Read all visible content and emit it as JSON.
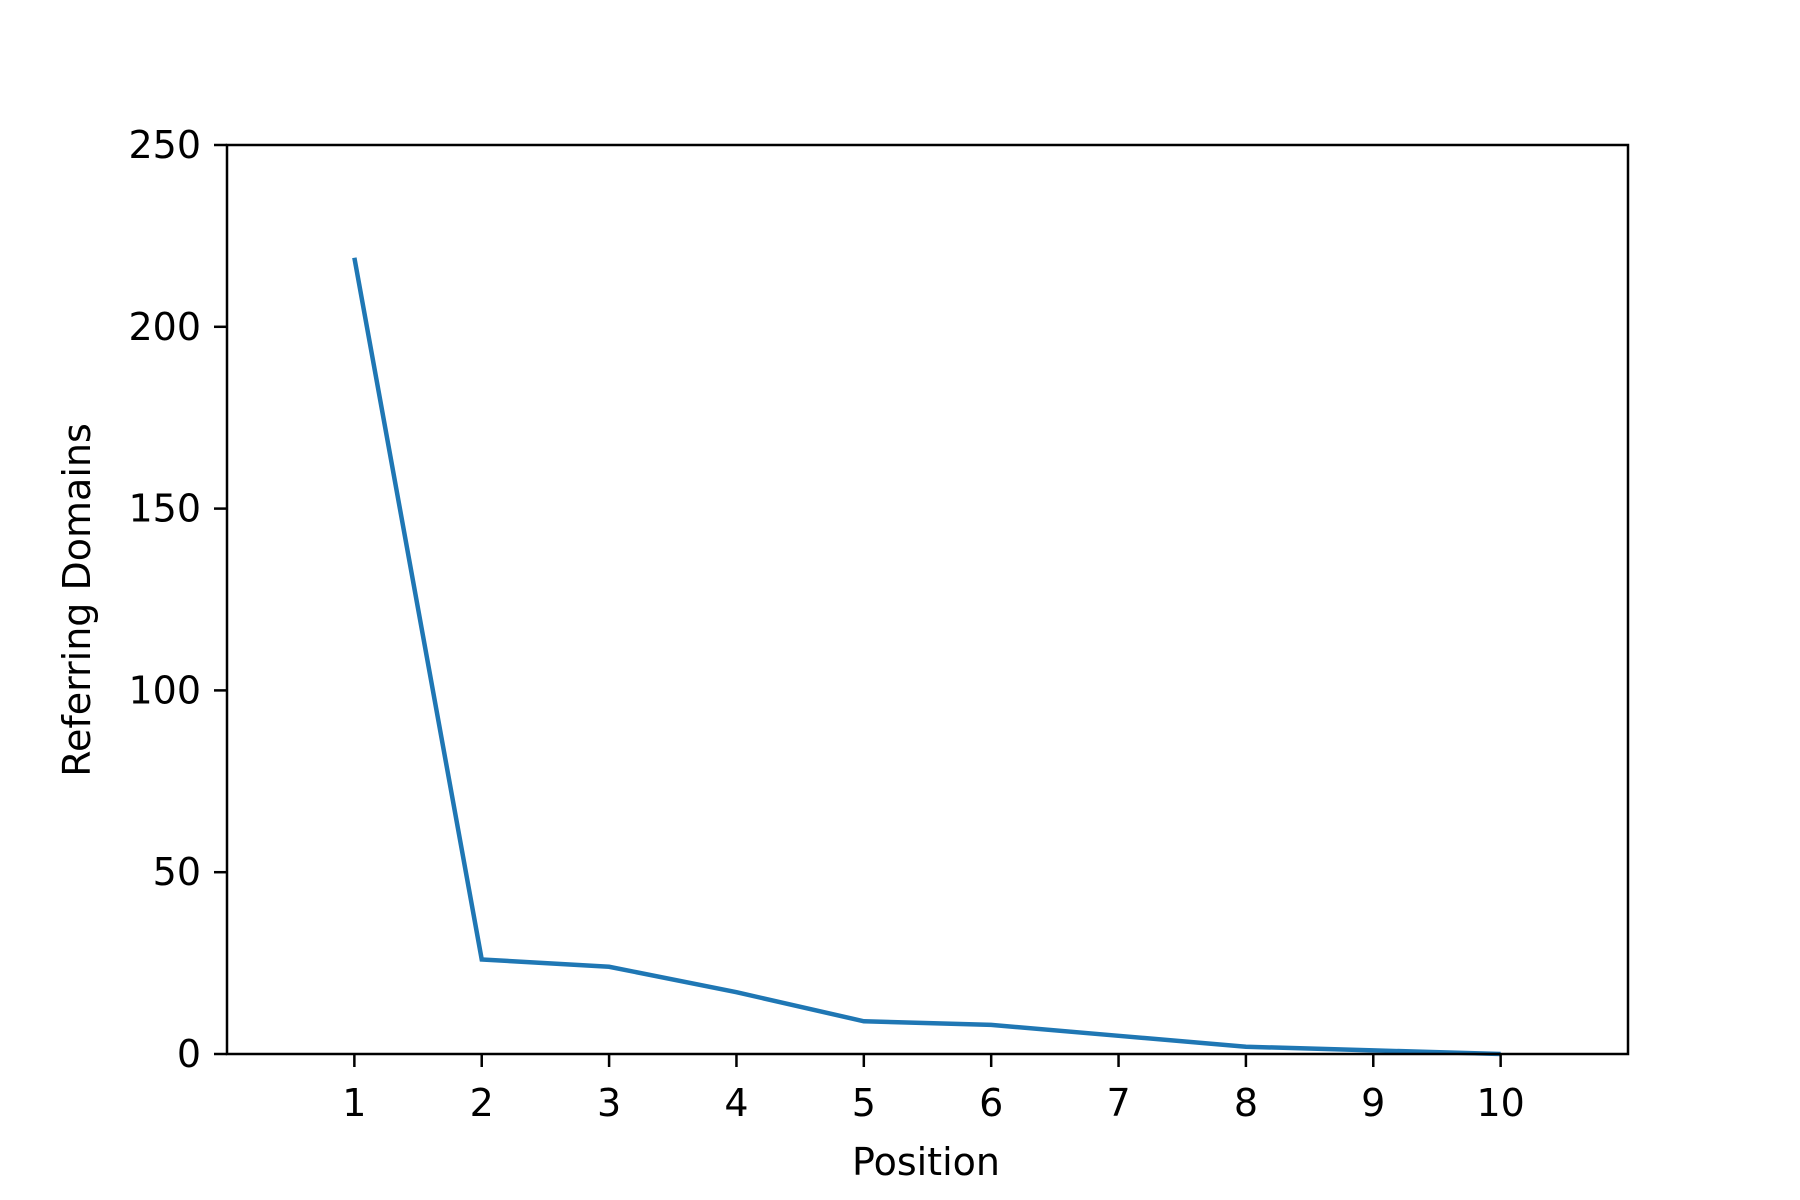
{
  "chart_data": {
    "type": "line",
    "title": "",
    "xlabel": "Position",
    "ylabel": "Referring Domains",
    "x": [
      1,
      2,
      3,
      4,
      5,
      6,
      7,
      8,
      9,
      10
    ],
    "xlim": [
      0,
      11
    ],
    "ylim": [
      0,
      250
    ],
    "x_ticks": [
      "1",
      "2",
      "3",
      "4",
      "5",
      "6",
      "7",
      "8",
      "9",
      "10"
    ],
    "y_ticks": [
      "0",
      "50",
      "100",
      "150",
      "200",
      "250"
    ],
    "grid": false,
    "series": [
      {
        "values": [
          219,
          26,
          24,
          17,
          9,
          8,
          5,
          2,
          1,
          0
        ],
        "color": "#1f77b4"
      }
    ]
  }
}
